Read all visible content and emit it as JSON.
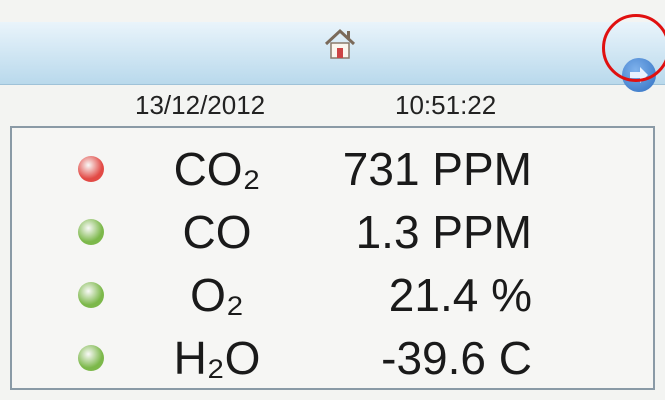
{
  "header": {
    "date": "13/12/2012",
    "time": "10:51:22"
  },
  "readings": [
    {
      "gas": "CO₂",
      "value": "731 PPM",
      "color": "#e24a45"
    },
    {
      "gas": "CO",
      "value": "1.3 PPM",
      "color": "#7cb84a"
    },
    {
      "gas": "O₂",
      "value": "21.4 %",
      "color": "#7cb84a"
    },
    {
      "gas": "H₂O",
      "value": "-39.6 C",
      "color": "#7cb84a"
    }
  ]
}
